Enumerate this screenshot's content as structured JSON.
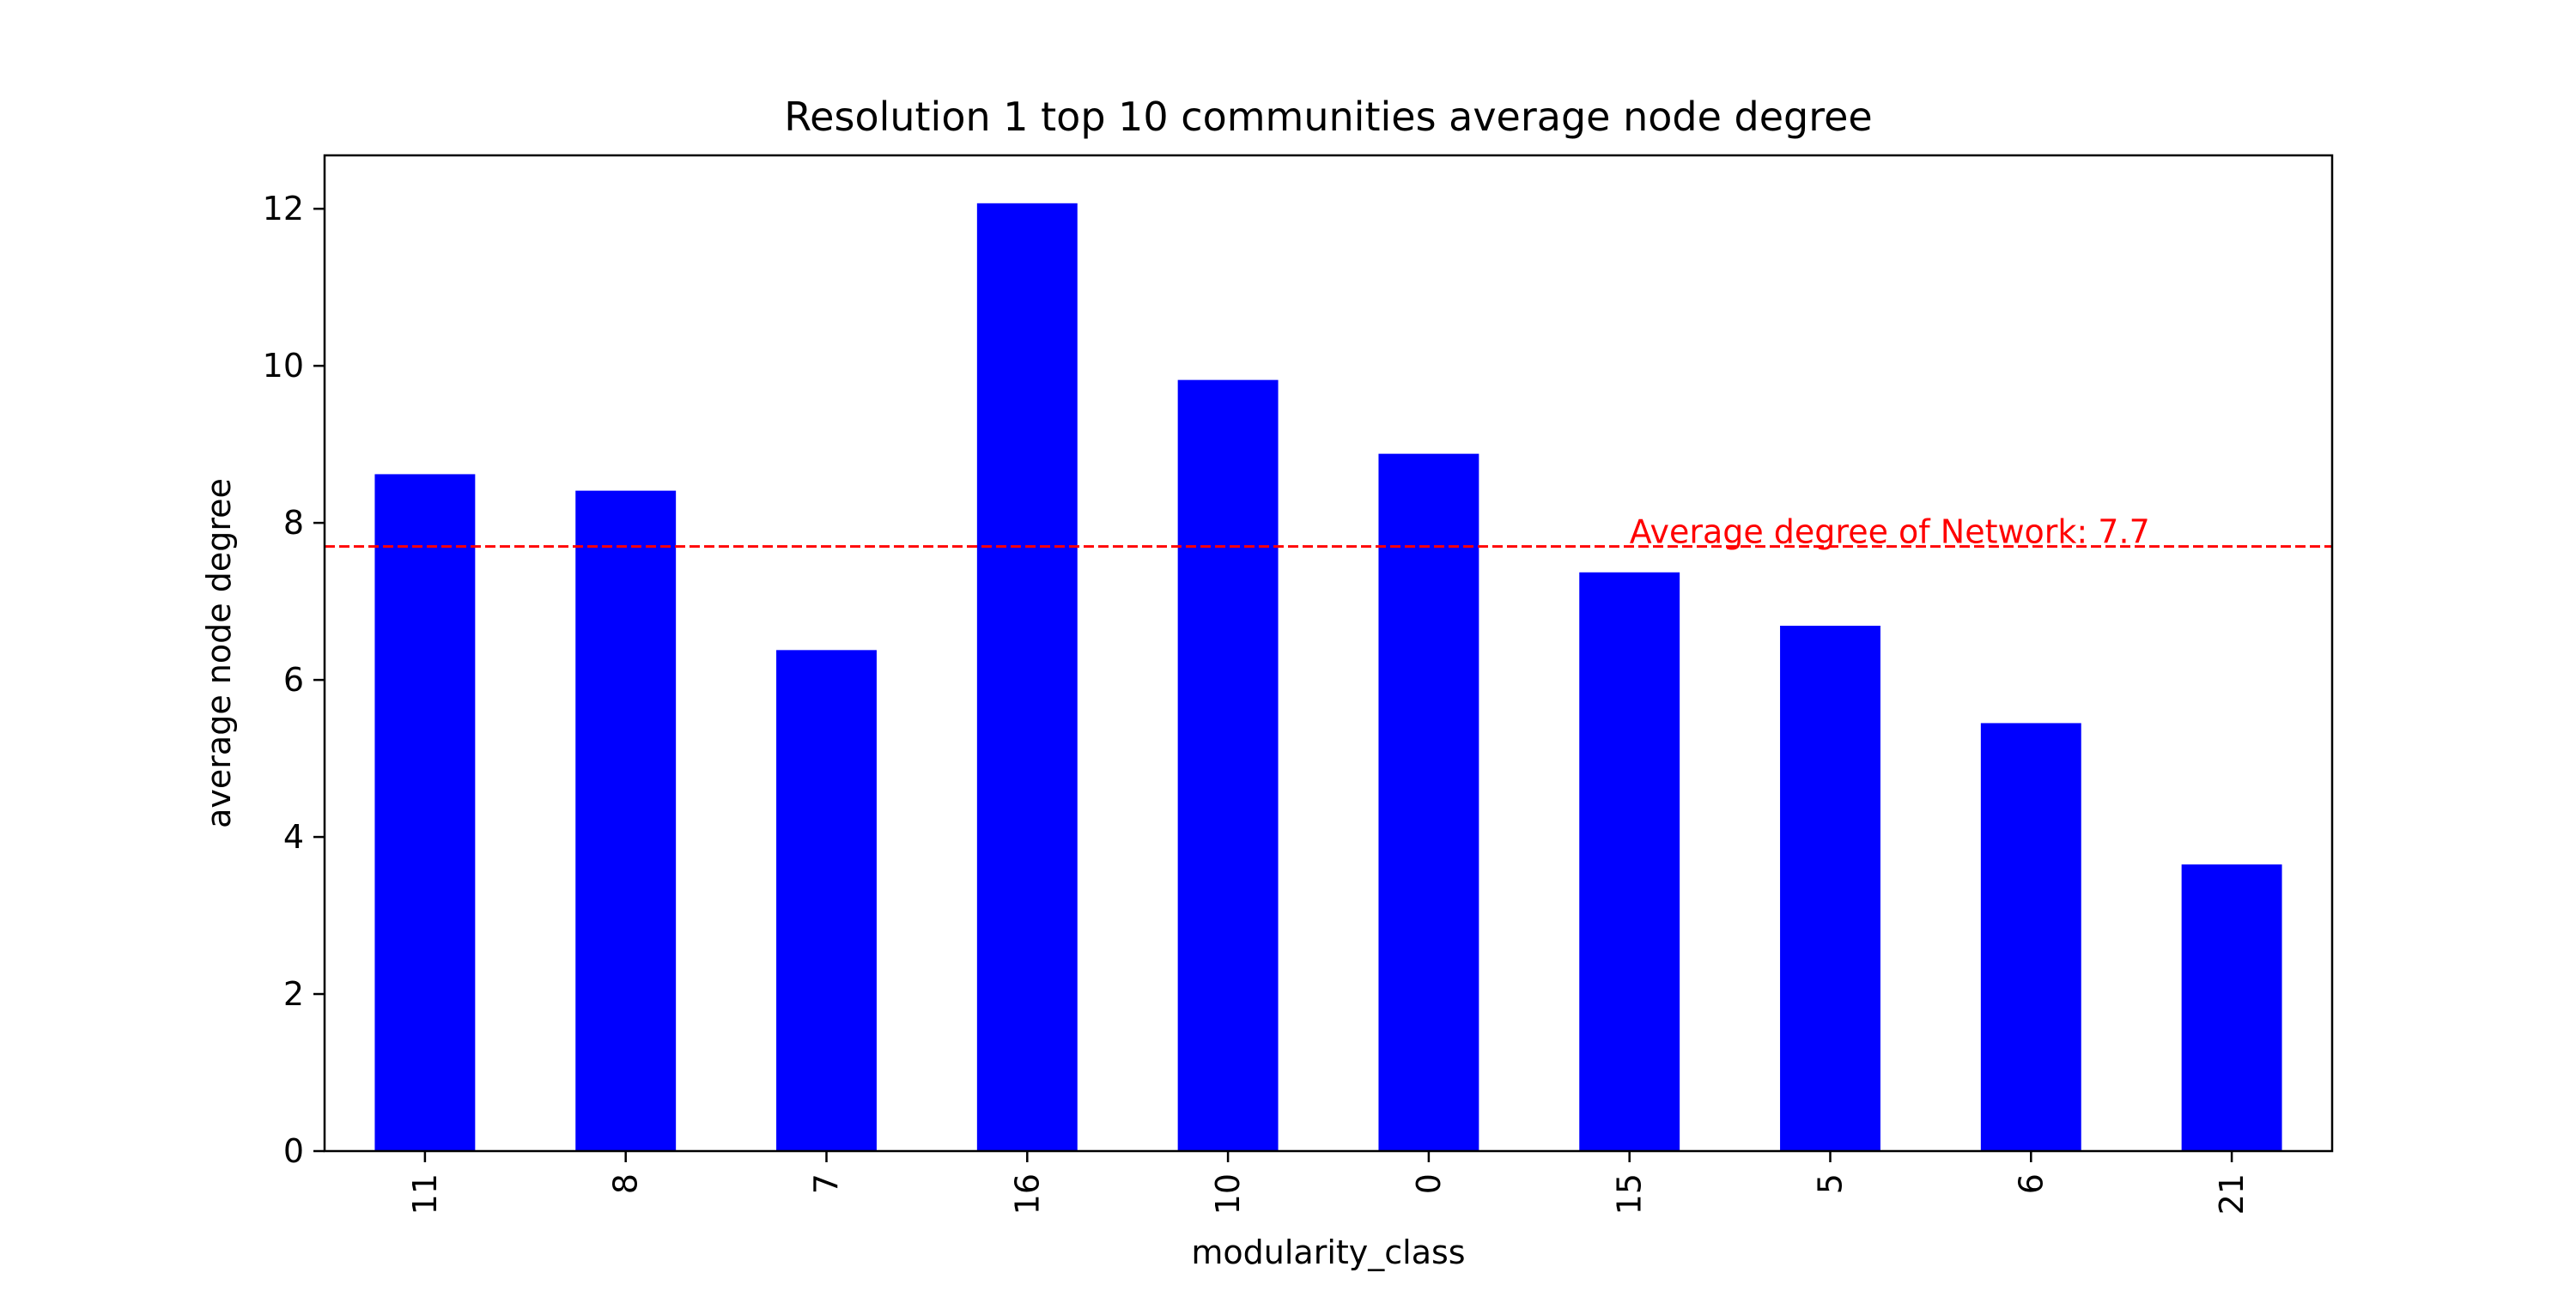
{
  "chart_data": {
    "type": "bar",
    "title": "Resolution 1 top 10 communities average node degree",
    "xlabel": "modularity_class",
    "ylabel": "average node degree",
    "categories": [
      "11",
      "8",
      "7",
      "16",
      "10",
      "0",
      "15",
      "5",
      "6",
      "21"
    ],
    "values": [
      8.62,
      8.41,
      6.38,
      12.07,
      9.82,
      8.88,
      7.37,
      6.69,
      5.45,
      3.65
    ],
    "ylim": [
      0,
      12.68
    ],
    "yticks": [
      0,
      2,
      4,
      6,
      8,
      10,
      12
    ],
    "bar_color": "#0000ff",
    "grid": false,
    "reference_line": {
      "value": 7.7,
      "label": "Average degree of Network: 7.7",
      "color": "#ff0000",
      "style": "dashed",
      "label_anchor_category": "15"
    }
  }
}
